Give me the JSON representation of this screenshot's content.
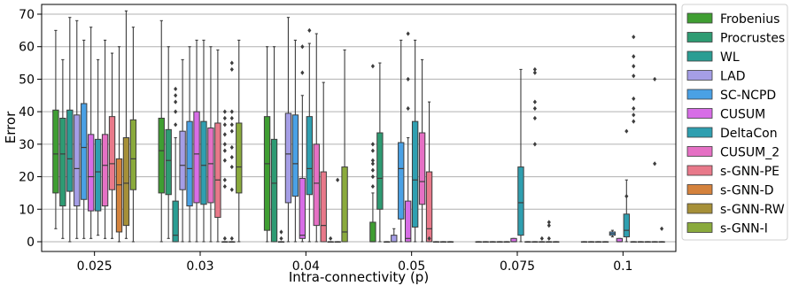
{
  "chart_data": {
    "type": "box",
    "xlabel": "Intra-connectivity (p)",
    "ylabel": "Error",
    "ylim": [
      -3,
      73
    ],
    "yticks": [
      0,
      10,
      20,
      30,
      40,
      50,
      60,
      70
    ],
    "grid": "horizontal",
    "legend_position": "right",
    "categories": [
      "0.025",
      "0.03",
      "0.04",
      "0.05",
      "0.075",
      "0.1"
    ],
    "series": [
      {
        "name": "Frobenius",
        "color": "#3f9e32",
        "boxes": [
          {
            "whislo": 4,
            "q1": 15,
            "med": 27,
            "q3": 40.5,
            "whishi": 65,
            "fliers": []
          },
          {
            "whislo": 0,
            "q1": 15,
            "med": 28,
            "q3": 38,
            "whishi": 68,
            "fliers": []
          },
          {
            "whislo": 0,
            "q1": 3.5,
            "med": 24,
            "q3": 38.5,
            "whishi": 60,
            "fliers": []
          },
          {
            "whislo": 0,
            "q1": 0,
            "med": 0,
            "q3": 6,
            "whishi": 15,
            "fliers": [
              17,
              20,
              22,
              24,
              25,
              28,
              30,
              54
            ]
          },
          {
            "whislo": 0,
            "q1": 0,
            "med": 0,
            "q3": 0,
            "whishi": 0,
            "fliers": []
          },
          {
            "whislo": 0,
            "q1": 0,
            "med": 0,
            "q3": 0,
            "whishi": 0,
            "fliers": []
          }
        ]
      },
      {
        "name": "Procrustes",
        "color": "#2e9b73",
        "boxes": [
          {
            "whislo": 1,
            "q1": 11,
            "med": 27,
            "q3": 38,
            "whishi": 56,
            "fliers": []
          },
          {
            "whislo": 1,
            "q1": 14.5,
            "med": 25,
            "q3": 34.5,
            "whishi": 60,
            "fliers": []
          },
          {
            "whislo": 0,
            "q1": 0,
            "med": 18,
            "q3": 31.5,
            "whishi": 60,
            "fliers": []
          },
          {
            "whislo": 0,
            "q1": 10,
            "med": 19.5,
            "q3": 33.5,
            "whishi": 55,
            "fliers": []
          },
          {
            "whislo": 0,
            "q1": 0,
            "med": 0,
            "q3": 0,
            "whishi": 0,
            "fliers": []
          },
          {
            "whislo": 0,
            "q1": 0,
            "med": 0,
            "q3": 0,
            "whishi": 0,
            "fliers": []
          }
        ]
      },
      {
        "name": "WL",
        "color": "#2a9d93",
        "boxes": [
          {
            "whislo": 0,
            "q1": 15.5,
            "med": 25.5,
            "q3": 40.5,
            "whishi": 69,
            "fliers": []
          },
          {
            "whislo": 0,
            "q1": 0,
            "med": 2,
            "q3": 12.5,
            "whishi": 32,
            "fliers": [
              36,
              40,
              43,
              45,
              47
            ]
          },
          {
            "whislo": 0,
            "q1": 0,
            "med": 0,
            "q3": 0,
            "whishi": 0,
            "fliers": [
              1,
              3
            ]
          },
          {
            "whislo": 0,
            "q1": 0,
            "med": 0,
            "q3": 0,
            "whishi": 0,
            "fliers": []
          },
          {
            "whislo": 0,
            "q1": 0,
            "med": 0,
            "q3": 0,
            "whishi": 0,
            "fliers": []
          },
          {
            "whislo": 0,
            "q1": 0,
            "med": 0,
            "q3": 0,
            "whishi": 0,
            "fliers": []
          }
        ]
      },
      {
        "name": "LAD",
        "color": "#a59ee6",
        "boxes": [
          {
            "whislo": 1,
            "q1": 11,
            "med": 22.5,
            "q3": 39,
            "whishi": 68,
            "fliers": []
          },
          {
            "whislo": 0,
            "q1": 16,
            "med": 23.5,
            "q3": 34,
            "whishi": 56,
            "fliers": []
          },
          {
            "whislo": 0,
            "q1": 12,
            "med": 27,
            "q3": 39.5,
            "whishi": 69,
            "fliers": []
          },
          {
            "whislo": 0,
            "q1": 0,
            "med": 0,
            "q3": 2,
            "whishi": 4,
            "fliers": []
          },
          {
            "whislo": 0,
            "q1": 0,
            "med": 0,
            "q3": 0,
            "whishi": 0,
            "fliers": []
          },
          {
            "whislo": 0,
            "q1": 0,
            "med": 0,
            "q3": 0,
            "whishi": 0,
            "fliers": []
          }
        ]
      },
      {
        "name": "SC-NCPD",
        "color": "#4aa1e5",
        "boxes": [
          {
            "whislo": 1,
            "q1": 13,
            "med": 29,
            "q3": 42.5,
            "whishi": 62,
            "fliers": []
          },
          {
            "whislo": 0,
            "q1": 11,
            "med": 22.5,
            "q3": 37,
            "whishi": 60,
            "fliers": []
          },
          {
            "whislo": 0,
            "q1": 14,
            "med": 24,
            "q3": 39,
            "whishi": 62,
            "fliers": []
          },
          {
            "whislo": 0,
            "q1": 7,
            "med": 22.5,
            "q3": 30.5,
            "whishi": 62,
            "fliers": []
          },
          {
            "whislo": 0,
            "q1": 0,
            "med": 0,
            "q3": 0,
            "whishi": 0,
            "fliers": []
          },
          {
            "whislo": 1.5,
            "q1": 2,
            "med": 2.5,
            "q3": 3,
            "whishi": 3.5,
            "fliers": []
          }
        ]
      },
      {
        "name": "CUSUM",
        "color": "#d76de6",
        "boxes": [
          {
            "whislo": 1,
            "q1": 9.5,
            "med": 20,
            "q3": 33,
            "whishi": 66,
            "fliers": []
          },
          {
            "whislo": 0,
            "q1": 12,
            "med": 27,
            "q3": 40,
            "whishi": 62,
            "fliers": []
          },
          {
            "whislo": 0,
            "q1": 1,
            "med": 2,
            "q3": 19.5,
            "whishi": 45,
            "fliers": [
              52,
              60
            ]
          },
          {
            "whislo": 0,
            "q1": 0,
            "med": 1,
            "q3": 12.5,
            "whishi": 32,
            "fliers": [
              41,
              50,
              64
            ]
          },
          {
            "whislo": 0,
            "q1": 0,
            "med": 0,
            "q3": 1,
            "whishi": 1,
            "fliers": []
          },
          {
            "whislo": 0,
            "q1": 0,
            "med": 0,
            "q3": 1,
            "whishi": 1,
            "fliers": []
          }
        ]
      },
      {
        "name": "DeltaCon",
        "color": "#2f9fb0",
        "boxes": [
          {
            "whislo": 2,
            "q1": 9.5,
            "med": 21.5,
            "q3": 31.5,
            "whishi": 56,
            "fliers": []
          },
          {
            "whislo": 0,
            "q1": 11.5,
            "med": 23.5,
            "q3": 37,
            "whishi": 62,
            "fliers": []
          },
          {
            "whislo": 0,
            "q1": 14.5,
            "med": 22.5,
            "q3": 38.5,
            "whishi": 61,
            "fliers": [
              65
            ]
          },
          {
            "whislo": 0,
            "q1": 4.5,
            "med": 19,
            "q3": 37,
            "whishi": 62,
            "fliers": []
          },
          {
            "whislo": 0,
            "q1": 2,
            "med": 12,
            "q3": 23,
            "whishi": 53,
            "fliers": []
          },
          {
            "whislo": 0,
            "q1": 1.5,
            "med": 3.5,
            "q3": 8.5,
            "whishi": 19,
            "fliers": [
              14,
              34
            ]
          }
        ]
      },
      {
        "name": "CUSUM_2",
        "color": "#e570c4",
        "boxes": [
          {
            "whislo": 1,
            "q1": 11,
            "med": 23.5,
            "q3": 33,
            "whishi": 62,
            "fliers": []
          },
          {
            "whislo": 0,
            "q1": 12,
            "med": 24,
            "q3": 35,
            "whishi": 60,
            "fliers": []
          },
          {
            "whislo": 0,
            "q1": 5,
            "med": 18,
            "q3": 30,
            "whishi": 64,
            "fliers": []
          },
          {
            "whislo": 0,
            "q1": 11.5,
            "med": 18.5,
            "q3": 33.5,
            "whishi": 56,
            "fliers": []
          },
          {
            "whislo": 0,
            "q1": 0,
            "med": 0,
            "q3": 0,
            "whishi": 0,
            "fliers": []
          },
          {
            "whislo": 0,
            "q1": 0,
            "med": 0,
            "q3": 0,
            "whishi": 0,
            "fliers": [
              37,
              39,
              41,
              44,
              51,
              54,
              57,
              63
            ]
          }
        ]
      },
      {
        "name": "s-GNN-PE",
        "color": "#e8798a",
        "boxes": [
          {
            "whislo": 1,
            "q1": 16,
            "med": 24,
            "q3": 38.5,
            "whishi": 58,
            "fliers": []
          },
          {
            "whislo": 0,
            "q1": 7.5,
            "med": 19,
            "q3": 36.5,
            "whishi": 59,
            "fliers": []
          },
          {
            "whislo": 0,
            "q1": 0,
            "med": 5,
            "q3": 21.5,
            "whishi": 49,
            "fliers": []
          },
          {
            "whislo": 0,
            "q1": 0,
            "med": 4,
            "q3": 21.5,
            "whishi": 43,
            "fliers": [
              1
            ]
          },
          {
            "whislo": 0,
            "q1": 0,
            "med": 0,
            "q3": 0,
            "whishi": 0,
            "fliers": [
              30,
              38,
              41,
              43,
              52,
              53
            ]
          },
          {
            "whislo": 0,
            "q1": 0,
            "med": 0,
            "q3": 0,
            "whishi": 0,
            "fliers": []
          }
        ]
      },
      {
        "name": "s-GNN-D",
        "color": "#d4823c",
        "boxes": [
          {
            "whislo": 0,
            "q1": 3,
            "med": 17.5,
            "q3": 25.5,
            "whishi": 60,
            "fliers": []
          },
          {
            "whislo": 0,
            "q1": 0,
            "med": 0,
            "q3": 0,
            "whishi": 0,
            "fliers": [
              1,
              17,
              19,
              25,
              28,
              30,
              33,
              36,
              38,
              40
            ]
          },
          {
            "whislo": 0,
            "q1": 0,
            "med": 0,
            "q3": 0,
            "whishi": 0,
            "fliers": [
              1
            ]
          },
          {
            "whislo": 0,
            "q1": 0,
            "med": 0,
            "q3": 0,
            "whishi": 0,
            "fliers": []
          },
          {
            "whislo": 0,
            "q1": 0,
            "med": 0,
            "q3": 0,
            "whishi": 0,
            "fliers": [
              1
            ]
          },
          {
            "whislo": 0,
            "q1": 0,
            "med": 0,
            "q3": 0,
            "whishi": 0,
            "fliers": []
          }
        ]
      },
      {
        "name": "s-GNN-RW",
        "color": "#a69038",
        "boxes": [
          {
            "whislo": 1,
            "q1": 5,
            "med": 18,
            "q3": 32,
            "whishi": 71,
            "fliers": []
          },
          {
            "whislo": 0,
            "q1": 0,
            "med": 0,
            "q3": 0,
            "whishi": 0,
            "fliers": [
              1,
              16,
              23,
              26,
              29,
              34,
              36,
              38,
              40,
              53,
              55
            ]
          },
          {
            "whislo": 0,
            "q1": 0,
            "med": 0,
            "q3": 0,
            "whishi": 0,
            "fliers": [
              19
            ]
          },
          {
            "whislo": 0,
            "q1": 0,
            "med": 0,
            "q3": 0,
            "whishi": 0,
            "fliers": []
          },
          {
            "whislo": 0,
            "q1": 0,
            "med": 0,
            "q3": 0,
            "whishi": 0,
            "fliers": [
              1,
              5,
              6
            ]
          },
          {
            "whislo": 0,
            "q1": 0,
            "med": 0,
            "q3": 0,
            "whishi": 0,
            "fliers": [
              24,
              50
            ]
          }
        ]
      },
      {
        "name": "s-GNN-I",
        "color": "#8aaa3c",
        "boxes": [
          {
            "whislo": 0,
            "q1": 16,
            "med": 25.5,
            "q3": 37.5,
            "whishi": 66,
            "fliers": []
          },
          {
            "whislo": 0,
            "q1": 15,
            "med": 23,
            "q3": 36.5,
            "whishi": 62,
            "fliers": []
          },
          {
            "whislo": 0,
            "q1": 0,
            "med": 3,
            "q3": 23,
            "whishi": 59,
            "fliers": []
          },
          {
            "whislo": 0,
            "q1": 0,
            "med": 0,
            "q3": 0,
            "whishi": 0,
            "fliers": []
          },
          {
            "whislo": 0,
            "q1": 0,
            "med": 0,
            "q3": 0,
            "whishi": 0,
            "fliers": []
          },
          {
            "whislo": 0,
            "q1": 0,
            "med": 0,
            "q3": 0,
            "whishi": 0,
            "fliers": [
              4
            ]
          }
        ]
      }
    ]
  }
}
